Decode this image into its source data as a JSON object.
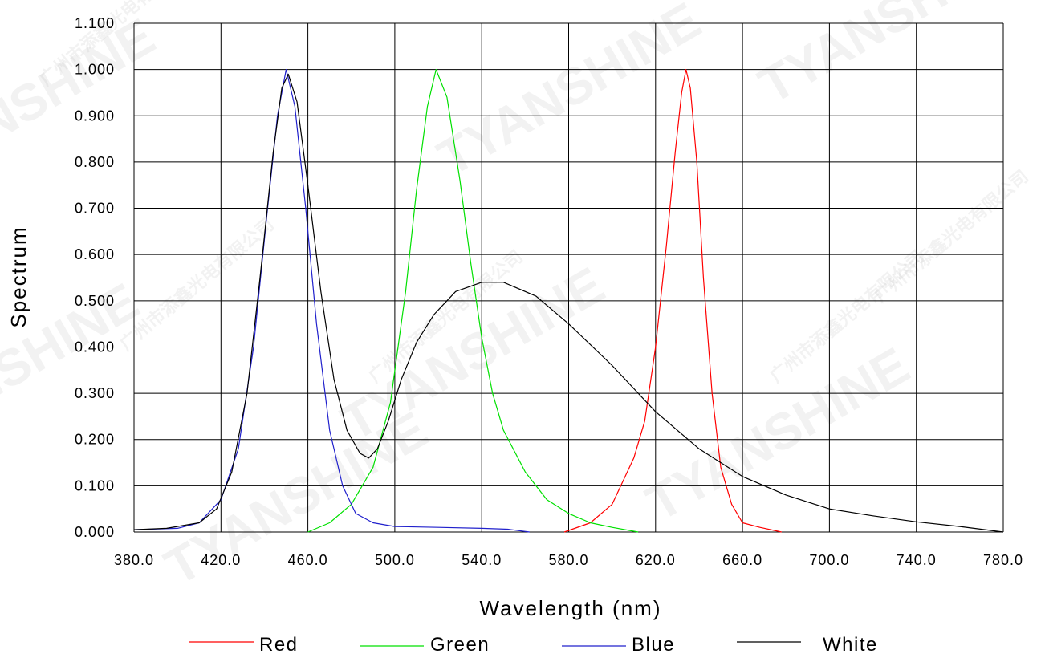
{
  "watermark": {
    "brand": "TYANSHINE",
    "company": "广州市添鑫光电有限公司"
  },
  "chart_data": {
    "type": "line",
    "xlabel": "Wavelength (nm)",
    "ylabel": "Spectrum",
    "xlim": [
      380,
      780
    ],
    "ylim": [
      0,
      1.1
    ],
    "grid": true,
    "legend_position": "bottom",
    "x_ticks": [
      "380.0",
      "420.0",
      "460.0",
      "500.0",
      "540.0",
      "580.0",
      "620.0",
      "660.0",
      "700.0",
      "740.0",
      "780.0"
    ],
    "y_ticks": [
      "0.000",
      "0.100",
      "0.200",
      "0.300",
      "0.400",
      "0.500",
      "0.600",
      "0.700",
      "0.800",
      "0.900",
      "1.000",
      "1.100"
    ],
    "series": [
      {
        "name": "Red",
        "color": "#ff0000",
        "points": [
          [
            578,
            0
          ],
          [
            590,
            0.02
          ],
          [
            600,
            0.06
          ],
          [
            610,
            0.16
          ],
          [
            615,
            0.24
          ],
          [
            620,
            0.4
          ],
          [
            625,
            0.62
          ],
          [
            629,
            0.82
          ],
          [
            632,
            0.95
          ],
          [
            634,
            1.0
          ],
          [
            636,
            0.96
          ],
          [
            639,
            0.8
          ],
          [
            642,
            0.55
          ],
          [
            646,
            0.3
          ],
          [
            650,
            0.14
          ],
          [
            655,
            0.06
          ],
          [
            660,
            0.02
          ],
          [
            668,
            0.01
          ],
          [
            678,
            0.0
          ]
        ]
      },
      {
        "name": "Green",
        "color": "#00e000",
        "points": [
          [
            460,
            0
          ],
          [
            470,
            0.02
          ],
          [
            480,
            0.06
          ],
          [
            490,
            0.14
          ],
          [
            498,
            0.28
          ],
          [
            505,
            0.52
          ],
          [
            510,
            0.74
          ],
          [
            515,
            0.92
          ],
          [
            519,
            1.0
          ],
          [
            524,
            0.94
          ],
          [
            530,
            0.76
          ],
          [
            535,
            0.58
          ],
          [
            540,
            0.42
          ],
          [
            545,
            0.3
          ],
          [
            550,
            0.22
          ],
          [
            560,
            0.13
          ],
          [
            570,
            0.07
          ],
          [
            580,
            0.04
          ],
          [
            590,
            0.02
          ],
          [
            600,
            0.01
          ],
          [
            612,
            0.0
          ]
        ]
      },
      {
        "name": "Blue",
        "color": "#2020cc",
        "points": [
          [
            380,
            0.005
          ],
          [
            400,
            0.008
          ],
          [
            410,
            0.02
          ],
          [
            420,
            0.07
          ],
          [
            428,
            0.18
          ],
          [
            435,
            0.4
          ],
          [
            441,
            0.68
          ],
          [
            446,
            0.9
          ],
          [
            450,
            1.0
          ],
          [
            454,
            0.92
          ],
          [
            459,
            0.7
          ],
          [
            464,
            0.45
          ],
          [
            470,
            0.22
          ],
          [
            476,
            0.1
          ],
          [
            482,
            0.04
          ],
          [
            490,
            0.02
          ],
          [
            500,
            0.012
          ],
          [
            520,
            0.01
          ],
          [
            540,
            0.008
          ],
          [
            552,
            0.006
          ],
          [
            562,
            0.0
          ]
        ]
      },
      {
        "name": "White",
        "color": "#000000",
        "points": [
          [
            380,
            0.005
          ],
          [
            395,
            0.008
          ],
          [
            410,
            0.02
          ],
          [
            418,
            0.05
          ],
          [
            425,
            0.13
          ],
          [
            432,
            0.3
          ],
          [
            438,
            0.55
          ],
          [
            444,
            0.82
          ],
          [
            448,
            0.96
          ],
          [
            451,
            0.99
          ],
          [
            455,
            0.93
          ],
          [
            460,
            0.75
          ],
          [
            466,
            0.52
          ],
          [
            472,
            0.33
          ],
          [
            478,
            0.22
          ],
          [
            484,
            0.17
          ],
          [
            488,
            0.16
          ],
          [
            492,
            0.18
          ],
          [
            497,
            0.24
          ],
          [
            503,
            0.33
          ],
          [
            510,
            0.41
          ],
          [
            518,
            0.47
          ],
          [
            528,
            0.52
          ],
          [
            540,
            0.54
          ],
          [
            550,
            0.54
          ],
          [
            565,
            0.51
          ],
          [
            580,
            0.45
          ],
          [
            600,
            0.36
          ],
          [
            620,
            0.26
          ],
          [
            640,
            0.18
          ],
          [
            660,
            0.12
          ],
          [
            680,
            0.08
          ],
          [
            700,
            0.05
          ],
          [
            720,
            0.035
          ],
          [
            740,
            0.022
          ],
          [
            760,
            0.012
          ],
          [
            780,
            0.0
          ]
        ]
      }
    ]
  }
}
